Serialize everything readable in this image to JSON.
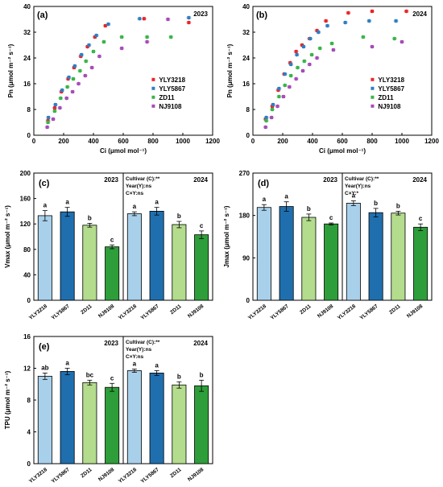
{
  "colors": {
    "YLY3218": "#e8262b",
    "YLY5867": "#2e7fc1",
    "ZD11": "#3ab54a",
    "NJ9108": "#a64cb8",
    "bar_YLY3218": "#a9d0ea",
    "bar_YLY5867": "#1f6fae",
    "bar_ZD11": "#b3dc8c",
    "bar_NJ9108": "#2e9e3a"
  },
  "cultivars": [
    "YLY3218",
    "YLY5867",
    "ZD11",
    "NJ9108"
  ],
  "chart_data": [
    {
      "panel": "(a)",
      "type": "scatter",
      "year_label": "2023",
      "xlabel": "Ci (μmol mol⁻¹)",
      "ylabel": "Pn (μmol m⁻² s⁻¹)",
      "xlim": [
        0,
        1200
      ],
      "ylim": [
        0,
        40
      ],
      "xticks": [
        "0",
        "200",
        "400",
        "600",
        "800",
        "1000",
        "1200"
      ],
      "yticks": [
        "0",
        "8",
        "16",
        "24",
        "32",
        "40"
      ],
      "legend": [
        "YLY3218",
        "YLY5867",
        "ZD11",
        "NJ9108"
      ],
      "series": [
        {
          "name": "YLY3218",
          "x": [
            95,
            140,
            185,
            230,
            270,
            315,
            360,
            410,
            480,
            740,
            1040
          ],
          "y": [
            4.5,
            8.5,
            13.5,
            17.5,
            21,
            24.5,
            27.5,
            30.5,
            34,
            36.2,
            35
          ]
        },
        {
          "name": "YLY5867",
          "x": [
            98,
            145,
            190,
            235,
            275,
            320,
            370,
            420,
            500,
            710,
            1040
          ],
          "y": [
            5.5,
            9.5,
            14,
            18,
            21.5,
            25,
            28,
            31,
            34.5,
            36.2,
            36.5
          ]
        },
        {
          "name": "ZD11",
          "x": [
            95,
            140,
            180,
            225,
            265,
            310,
            350,
            400,
            470,
            590,
            760,
            920
          ],
          "y": [
            4,
            7.5,
            11.5,
            15,
            17.5,
            20,
            23,
            26,
            29,
            30.5,
            30.5,
            30.5
          ]
        },
        {
          "name": "NJ9108",
          "x": [
            90,
            130,
            175,
            220,
            260,
            300,
            345,
            390,
            440,
            590,
            760,
            900
          ],
          "y": [
            2.5,
            5,
            8.5,
            11.5,
            13.5,
            16,
            18.5,
            21,
            24.5,
            27,
            29,
            36
          ]
        }
      ]
    },
    {
      "panel": "(b)",
      "type": "scatter",
      "year_label": "2024",
      "xlabel": "Ci (μmol mol⁻¹)",
      "ylabel": "Pn (μmol m⁻² s⁻¹)",
      "xlim": [
        0,
        1200
      ],
      "ylim": [
        0,
        40
      ],
      "xticks": [
        "0",
        "200",
        "400",
        "600",
        "800",
        "1000",
        "1200"
      ],
      "yticks": [
        "0",
        "8",
        "16",
        "24",
        "32",
        "40"
      ],
      "legend": [
        "YLY3218",
        "YLY5867",
        "ZD11",
        "NJ9108"
      ],
      "series": [
        {
          "name": "YLY3218",
          "x": [
            85,
            130,
            170,
            210,
            250,
            290,
            330,
            380,
            430,
            490,
            640,
            800,
            1030
          ],
          "y": [
            5,
            9,
            14,
            19,
            22.5,
            26,
            28,
            30,
            32.5,
            35.5,
            38,
            38.5,
            38.5
          ]
        },
        {
          "name": "YLY5867",
          "x": [
            90,
            135,
            175,
            215,
            255,
            295,
            340,
            385,
            440,
            500,
            620,
            780,
            960
          ],
          "y": [
            5.5,
            9.5,
            14.5,
            19,
            22,
            25,
            27.5,
            30,
            32,
            34,
            35,
            35.5,
            35.5
          ]
        },
        {
          "name": "ZD11",
          "x": [
            90,
            130,
            175,
            215,
            255,
            300,
            345,
            395,
            450,
            530,
            740,
            950
          ],
          "y": [
            4.5,
            8,
            12,
            15.5,
            18.5,
            21,
            23,
            25,
            27,
            28.5,
            30.5,
            30
          ]
        },
        {
          "name": "NJ9108",
          "x": [
            85,
            125,
            165,
            205,
            245,
            290,
            335,
            380,
            430,
            540,
            800,
            1000
          ],
          "y": [
            2.5,
            5.5,
            9,
            12,
            15,
            17.5,
            20,
            22,
            24,
            26.5,
            27.5,
            29
          ]
        }
      ]
    },
    {
      "panel": "(c)",
      "type": "bar",
      "ylabel": "Vmax (μmol m⁻² s⁻¹)",
      "ylim": [
        0,
        200
      ],
      "yticks": [
        "0",
        "40",
        "80",
        "120",
        "160",
        "200"
      ],
      "categories": [
        "YLY3218",
        "YLY5867",
        "ZD11",
        "NJ9108",
        "YLY3218",
        "YLY5867",
        "ZD11",
        "NJ9108"
      ],
      "year_labels": [
        "2023",
        "2024"
      ],
      "stats": [
        "Cultivar (C):**",
        "Year(Y):ns",
        "C×Y:ns"
      ],
      "values": [
        133,
        139,
        118,
        84,
        136,
        140,
        119,
        103
      ],
      "errors": [
        8,
        7,
        3,
        3,
        3,
        6,
        5,
        6
      ],
      "letters": [
        "a",
        "a",
        "b",
        "c",
        "a",
        "a",
        "b",
        "c"
      ]
    },
    {
      "panel": "(d)",
      "type": "bar",
      "ylabel": "Jmax (μmol m⁻² s⁻¹)",
      "ylim": [
        0,
        270
      ],
      "yticks": [
        "0",
        "90",
        "180",
        "270"
      ],
      "categories": [
        "YLY3218",
        "YLY5867",
        "ZD11",
        "NJ9108",
        "YLY3218",
        "YLY5867",
        "ZD11",
        "NJ9108"
      ],
      "year_labels": [
        "2023",
        "2024"
      ],
      "stats": [
        "Cultivar (C):**",
        "Year(Y):ns",
        "C×Y:*"
      ],
      "values": [
        197,
        199,
        176,
        162,
        206,
        186,
        185,
        155
      ],
      "errors": [
        6,
        10,
        7,
        2,
        5,
        9,
        4,
        7
      ],
      "letters": [
        "a",
        "a",
        "b",
        "c",
        "a",
        "b",
        "b",
        "c"
      ]
    },
    {
      "panel": "(e)",
      "type": "bar",
      "ylabel": "TPU (μmol m⁻² s⁻¹)",
      "ylim": [
        0,
        16
      ],
      "yticks": [
        "0",
        "4",
        "8",
        "12",
        "16"
      ],
      "categories": [
        "YLY3218",
        "YLY5867",
        "ZD11",
        "NJ9108",
        "YLY3218",
        "YLY5867",
        "ZD11",
        "NJ9108"
      ],
      "year_labels": [
        "2023",
        "2024"
      ],
      "stats": [
        "Cultivar (C):**",
        "Year(Y):ns",
        "C×Y:ns"
      ],
      "values": [
        11.0,
        11.6,
        10.2,
        9.6,
        11.7,
        11.4,
        9.9,
        9.8
      ],
      "errors": [
        0.4,
        0.4,
        0.3,
        0.5,
        0.2,
        0.3,
        0.4,
        0.7
      ],
      "letters": [
        "ab",
        "a",
        "bc",
        "c",
        "a",
        "a",
        "b",
        "b"
      ]
    }
  ]
}
